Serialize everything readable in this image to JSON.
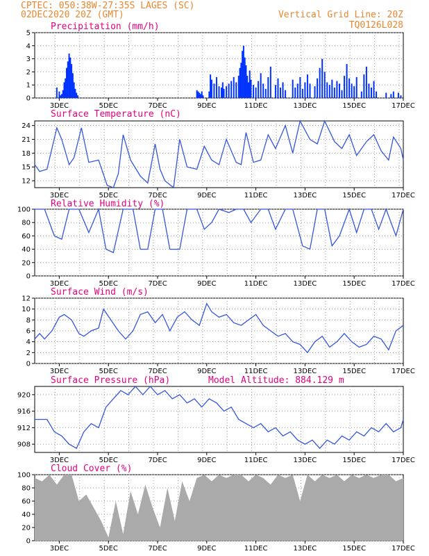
{
  "header": {
    "line1": "CPTEC:   050:38W-27:35S   LAGES (SC)",
    "line2": "02DEC2020 20Z (GMT)",
    "right1": "Vertical Grid Line: 20Z",
    "right2": "TQ0126L028"
  },
  "x_ticks": [
    "3DEC",
    "5DEC",
    "7DEC",
    "9DEC",
    "11DEC",
    "13DEC",
    "15DEC",
    "17DEC"
  ],
  "chart_data": [
    {
      "type": "bar",
      "title": "Precipitation (mm/h)",
      "ylim": [
        0,
        5
      ],
      "yticks": [
        "0",
        "1",
        "2",
        "3",
        "4",
        "5"
      ],
      "color": "#0033ff",
      "x": [
        2.9,
        3.0,
        3.05,
        3.1,
        3.15,
        3.2,
        3.25,
        3.3,
        3.35,
        3.4,
        3.45,
        3.5,
        3.55,
        3.6,
        3.65,
        3.7,
        3.75,
        8.6,
        8.65,
        8.7,
        8.75,
        8.8,
        8.85,
        9.1,
        9.15,
        9.2,
        9.3,
        9.4,
        9.5,
        9.6,
        9.65,
        9.7,
        9.8,
        9.9,
        10.0,
        10.1,
        10.2,
        10.3,
        10.35,
        10.4,
        10.45,
        10.5,
        10.55,
        10.6,
        10.65,
        10.7,
        10.75,
        10.8,
        10.9,
        11.0,
        11.1,
        11.2,
        11.3,
        11.4,
        11.5,
        11.6,
        11.8,
        11.9,
        12.0,
        12.1,
        12.2,
        12.5,
        12.6,
        12.7,
        12.8,
        12.9,
        13.0,
        13.1,
        13.2,
        13.4,
        13.5,
        13.6,
        13.7,
        13.8,
        13.9,
        14.0,
        14.1,
        14.2,
        14.3,
        14.4,
        14.5,
        14.6,
        14.7,
        14.8,
        14.9,
        15.0,
        15.1,
        15.3,
        15.4,
        15.5,
        15.6,
        15.7,
        15.8,
        15.9,
        16.3,
        16.5,
        16.6,
        16.8,
        16.9
      ],
      "values": [
        0.8,
        0.5,
        0.2,
        0.3,
        0.6,
        1.2,
        1.5,
        2.3,
        2.8,
        3.4,
        3.1,
        2.6,
        1.9,
        1.2,
        0.7,
        0.4,
        0.2,
        0.6,
        0.5,
        0.4,
        0.3,
        0.5,
        0.2,
        0.5,
        1.8,
        1.4,
        1.1,
        1.6,
        0.9,
        0.8,
        1.2,
        0.7,
        0.9,
        1.1,
        1.3,
        1.6,
        1.2,
        1.7,
        2.3,
        2.7,
        3.6,
        4.0,
        3.1,
        2.5,
        1.7,
        1.2,
        2.1,
        1.4,
        1.0,
        0.8,
        1.3,
        1.9,
        1.1,
        0.7,
        1.6,
        2.4,
        1.0,
        1.5,
        0.8,
        1.2,
        0.6,
        1.4,
        0.8,
        1.1,
        1.6,
        0.7,
        1.2,
        1.8,
        1.1,
        0.9,
        1.5,
        2.3,
        3.0,
        2.0,
        1.2,
        1.0,
        1.4,
        0.8,
        1.3,
        1.1,
        0.6,
        1.7,
        2.6,
        1.5,
        1.1,
        0.9,
        1.6,
        0.5,
        1.8,
        2.4,
        1.1,
        0.8,
        1.3,
        0.5,
        0.4,
        0.3,
        0.5,
        0.4,
        0.2
      ]
    },
    {
      "type": "line",
      "title": "Surface Temperature (nC)",
      "ylim": [
        10.5,
        25
      ],
      "yticks": [
        "12",
        "15",
        "18",
        "21",
        "24"
      ],
      "ytick_values": [
        12,
        15,
        18,
        21,
        24
      ],
      "color": "#3355dd",
      "x": [
        2.0,
        2.2,
        2.5,
        2.9,
        3.1,
        3.4,
        3.6,
        3.9,
        4.2,
        4.6,
        4.95,
        5.2,
        5.4,
        5.6,
        5.9,
        6.3,
        6.6,
        6.9,
        7.1,
        7.3,
        7.65,
        7.9,
        8.2,
        8.6,
        8.9,
        9.2,
        9.5,
        9.8,
        10.2,
        10.4,
        10.6,
        10.9,
        11.2,
        11.5,
        11.8,
        12.2,
        12.5,
        12.8,
        13.2,
        13.5,
        13.8,
        14.2,
        14.5,
        14.8,
        15.1,
        15.5,
        15.8,
        16.1,
        16.4,
        16.6,
        16.9,
        17.0
      ],
      "values": [
        15.5,
        14.0,
        14.5,
        23.5,
        21.0,
        15.5,
        17.0,
        23.5,
        16.0,
        16.5,
        11.0,
        10.5,
        13.5,
        22.0,
        16.5,
        13.0,
        11.5,
        20.0,
        14.5,
        12.0,
        10.5,
        21.0,
        15.0,
        14.5,
        19.5,
        16.5,
        15.5,
        21.0,
        16.0,
        15.5,
        22.5,
        16.0,
        16.5,
        22.0,
        19.0,
        24.0,
        18.0,
        25.0,
        21.0,
        20.0,
        25.0,
        20.5,
        19.0,
        22.0,
        17.5,
        20.5,
        22.0,
        18.5,
        16.5,
        21.5,
        19.0,
        16.5
      ]
    },
    {
      "type": "line",
      "title": "Relative Humidity (%)",
      "ylim": [
        0,
        100
      ],
      "yticks": [
        "0",
        "20",
        "40",
        "60",
        "80",
        "100"
      ],
      "ytick_values": [
        0,
        20,
        40,
        60,
        80,
        100
      ],
      "color": "#3355dd",
      "x": [
        2.0,
        2.4,
        2.8,
        3.1,
        3.4,
        3.8,
        4.2,
        4.6,
        4.9,
        5.2,
        5.6,
        6.0,
        6.3,
        6.6,
        6.9,
        7.2,
        7.5,
        7.9,
        8.2,
        8.6,
        8.9,
        9.2,
        9.5,
        9.9,
        10.2,
        10.5,
        10.8,
        11.2,
        11.5,
        11.8,
        12.2,
        12.5,
        12.9,
        13.2,
        13.5,
        13.8,
        14.1,
        14.4,
        14.8,
        15.1,
        15.4,
        15.7,
        16.0,
        16.3,
        16.7,
        17.0
      ],
      "values": [
        100,
        100,
        60,
        55,
        100,
        100,
        65,
        100,
        40,
        35,
        100,
        100,
        40,
        40,
        100,
        100,
        40,
        40,
        100,
        100,
        70,
        80,
        100,
        95,
        100,
        100,
        80,
        100,
        100,
        70,
        100,
        100,
        45,
        40,
        100,
        100,
        45,
        60,
        100,
        65,
        100,
        100,
        70,
        100,
        60,
        100
      ]
    },
    {
      "type": "line",
      "title": "Surface Wind (m/s)",
      "ylim": [
        0,
        12
      ],
      "yticks": [
        "0",
        "2",
        "4",
        "6",
        "8",
        "10",
        "12"
      ],
      "ytick_values": [
        0,
        2,
        4,
        6,
        8,
        10,
        12
      ],
      "color": "#3355dd",
      "x": [
        2.0,
        2.2,
        2.4,
        2.7,
        3.0,
        3.2,
        3.5,
        3.8,
        4.0,
        4.3,
        4.6,
        4.8,
        5.1,
        5.4,
        5.7,
        6.0,
        6.3,
        6.6,
        6.9,
        7.2,
        7.5,
        7.8,
        8.1,
        8.4,
        8.7,
        9.0,
        9.2,
        9.5,
        9.8,
        10.1,
        10.4,
        10.7,
        11.0,
        11.3,
        11.6,
        11.9,
        12.2,
        12.5,
        12.8,
        13.1,
        13.4,
        13.7,
        14.0,
        14.3,
        14.6,
        14.9,
        15.2,
        15.5,
        15.8,
        16.1,
        16.4,
        16.7,
        17.0
      ],
      "values": [
        4.5,
        5.5,
        4.5,
        6.0,
        8.5,
        9.0,
        8.0,
        5.5,
        5.0,
        6.0,
        6.5,
        10.0,
        8.0,
        6.0,
        4.5,
        6.0,
        9.0,
        9.5,
        7.5,
        9.0,
        6.0,
        8.5,
        9.5,
        8.0,
        7.0,
        11.0,
        9.5,
        8.5,
        9.0,
        7.5,
        7.0,
        8.0,
        9.0,
        7.0,
        6.0,
        5.0,
        5.5,
        4.0,
        3.5,
        2.0,
        4.0,
        5.0,
        3.0,
        4.0,
        5.5,
        4.0,
        3.0,
        3.5,
        5.0,
        4.5,
        2.5,
        6.0,
        7.0
      ]
    },
    {
      "type": "line",
      "title": "Surface Pressure (hPa)",
      "annotation": "Model Altitude: 884.129 m",
      "ylim": [
        906,
        922
      ],
      "yticks": [
        "908",
        "912",
        "916",
        "920"
      ],
      "ytick_values": [
        908,
        912,
        916,
        920
      ],
      "color": "#3355dd",
      "x": [
        2.0,
        2.5,
        2.8,
        3.1,
        3.4,
        3.7,
        4.0,
        4.3,
        4.6,
        4.9,
        5.2,
        5.5,
        5.8,
        6.1,
        6.4,
        6.7,
        7.0,
        7.3,
        7.6,
        7.9,
        8.2,
        8.5,
        8.8,
        9.1,
        9.4,
        9.7,
        10.0,
        10.3,
        10.6,
        10.9,
        11.2,
        11.5,
        11.8,
        12.1,
        12.4,
        12.7,
        13.0,
        13.3,
        13.6,
        13.9,
        14.2,
        14.5,
        14.8,
        15.1,
        15.4,
        15.7,
        16.0,
        16.3,
        16.6,
        16.9,
        17.0
      ],
      "values": [
        914,
        914,
        911,
        910,
        908,
        907,
        911,
        913,
        912,
        917,
        919,
        921,
        920,
        922,
        920,
        922,
        920,
        921,
        919,
        920,
        918,
        919,
        917,
        919,
        918,
        916,
        917,
        914,
        913,
        912,
        913,
        911,
        912,
        910,
        911,
        909,
        908,
        909,
        907,
        909,
        908,
        910,
        909,
        911,
        910,
        912,
        911,
        913,
        911,
        912,
        914
      ]
    },
    {
      "type": "area",
      "title": "Cloud Cover (%)",
      "ylim": [
        0,
        100
      ],
      "yticks": [
        "0",
        "20",
        "40",
        "60",
        "80",
        "100"
      ],
      "ytick_values": [
        0,
        20,
        40,
        60,
        80,
        100
      ],
      "color": "#aaaaaa",
      "x": [
        2.0,
        2.3,
        2.6,
        2.9,
        3.2,
        3.5,
        3.8,
        4.1,
        4.4,
        4.7,
        5.0,
        5.3,
        5.6,
        5.9,
        6.2,
        6.5,
        6.8,
        7.1,
        7.4,
        7.7,
        8.0,
        8.3,
        8.6,
        8.9,
        9.2,
        9.5,
        9.8,
        10.1,
        10.4,
        10.7,
        11.0,
        11.3,
        11.6,
        11.9,
        12.2,
        12.5,
        12.8,
        13.1,
        13.4,
        13.7,
        14.0,
        14.3,
        14.6,
        14.9,
        15.2,
        15.5,
        15.8,
        16.1,
        16.4,
        16.7,
        17.0
      ],
      "values": [
        95,
        90,
        100,
        85,
        100,
        100,
        60,
        70,
        50,
        30,
        5,
        60,
        10,
        75,
        40,
        85,
        50,
        20,
        80,
        30,
        90,
        60,
        95,
        100,
        90,
        100,
        95,
        100,
        100,
        90,
        100,
        95,
        85,
        100,
        95,
        100,
        60,
        100,
        90,
        100,
        95,
        100,
        90,
        100,
        95,
        100,
        95,
        100,
        100,
        90,
        95
      ]
    }
  ]
}
